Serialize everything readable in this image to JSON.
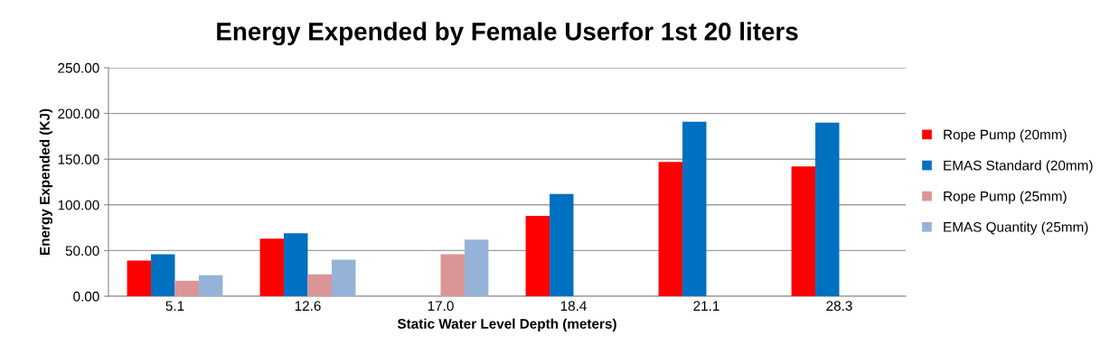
{
  "chart_data": {
    "type": "bar",
    "title": "Energy Expended by Female Userfor 1st 20 liters",
    "xlabel": "Static Water Level Depth (meters)",
    "ylabel": "Energy Expended (KJ)",
    "categories": [
      "5.1",
      "12.6",
      "17.0",
      "18.4",
      "21.1",
      "28.3"
    ],
    "series": [
      {
        "name": "Rope Pump (20mm)",
        "color": "#ff0000",
        "values": [
          39,
          63,
          null,
          88,
          147,
          142
        ]
      },
      {
        "name": "EMAS Standard (20mm)",
        "color": "#0070c0",
        "values": [
          46,
          69,
          null,
          112,
          191,
          190
        ]
      },
      {
        "name": "Rope Pump (25mm)",
        "color": "#d99694",
        "values": [
          17,
          24,
          46,
          null,
          null,
          null
        ]
      },
      {
        "name": "EMAS Quantity (25mm)",
        "color": "#95b3d7",
        "values": [
          23,
          40,
          62,
          null,
          null,
          null
        ]
      }
    ],
    "ylim": [
      0,
      250
    ],
    "yticks": [
      {
        "value": 0,
        "label": "0.00"
      },
      {
        "value": 50,
        "label": "50.00"
      },
      {
        "value": 100,
        "label": "100.00"
      },
      {
        "value": 150,
        "label": "150.00"
      },
      {
        "value": 200,
        "label": "200.00"
      },
      {
        "value": 250,
        "label": "250.00"
      }
    ],
    "grid": "y",
    "legend": "right"
  }
}
